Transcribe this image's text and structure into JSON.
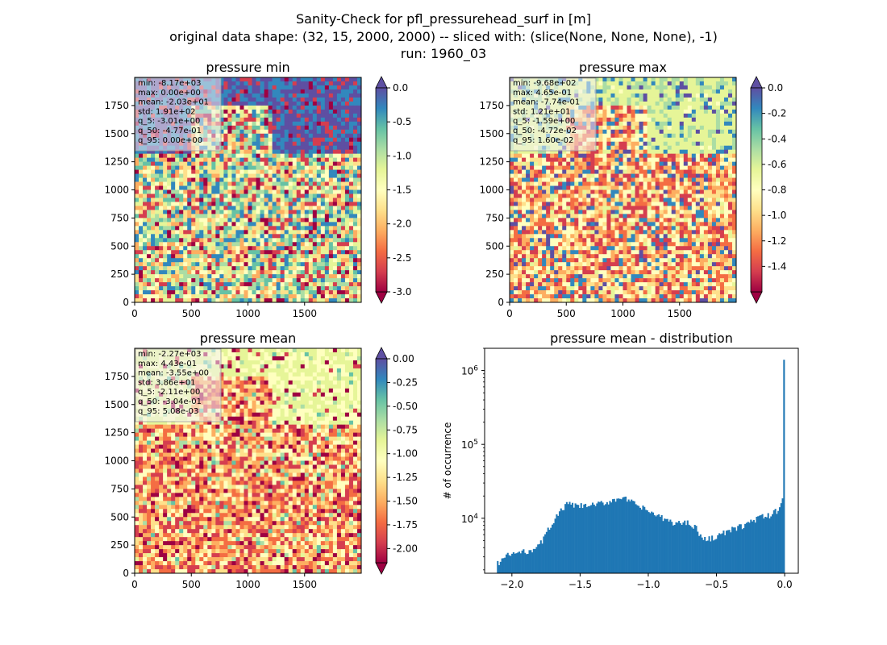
{
  "figure": {
    "title_lines": [
      "Sanity-Check for pfl_pressurehead_surf in [m]",
      "original data shape: (32, 15, 2000, 2000) -- sliced with: (slice(None, None, None), -1)",
      "run: 1960_03"
    ]
  },
  "colormap": [
    "#9e0142",
    "#d53e4f",
    "#f46d43",
    "#fdae61",
    "#fee08b",
    "#ffffbf",
    "#e6f598",
    "#abdda4",
    "#66c2a5",
    "#3288bd",
    "#5e4fa2"
  ],
  "chart_data": [
    {
      "type": "heatmap",
      "title": "pressure min",
      "xlim": [
        0,
        2000
      ],
      "ylim": [
        0,
        2000
      ],
      "xticks": [
        0,
        500,
        1000,
        1500
      ],
      "yticks": [
        0,
        250,
        500,
        750,
        1000,
        1250,
        1500,
        1750
      ],
      "colorbar": {
        "vmin": -3.0,
        "vmax": 0.0,
        "ticks": [
          "0.0",
          "-0.5",
          "-1.0",
          "-1.5",
          "-2.0",
          "-2.5",
          "-3.0"
        ],
        "extend": "both"
      },
      "stats": [
        "min: -8.17e+03",
        "max: 0.00e+00",
        "mean: -2.03e+01",
        "std: 1.91e+02",
        "q_5: -3.01e+00",
        "q_50: -4.77e-01",
        "q_95: 0.00e+00"
      ]
    },
    {
      "type": "heatmap",
      "title": "pressure max",
      "xlim": [
        0,
        2000
      ],
      "ylim": [
        0,
        2000
      ],
      "xticks": [
        0,
        500,
        1000,
        1500
      ],
      "yticks": [
        0,
        250,
        500,
        750,
        1000,
        1250,
        1500,
        1750
      ],
      "colorbar": {
        "vmin": -1.6,
        "vmax": 0.0,
        "ticks": [
          "0.0",
          "-0.2",
          "-0.4",
          "-0.6",
          "-0.8",
          "-1.0",
          "-1.2",
          "-1.4"
        ],
        "extend": "both"
      },
      "stats": [
        "min: -9.68e+02",
        "max: 4.65e-01",
        "mean: -7.74e-01",
        "std: 1.21e+01",
        "q_5: -1.59e+00",
        "q_50: -4.72e-02",
        "q_95: 1.60e-02"
      ]
    },
    {
      "type": "heatmap",
      "title": "pressure mean",
      "xlim": [
        0,
        2000
      ],
      "ylim": [
        0,
        2000
      ],
      "xticks": [
        0,
        500,
        1000,
        1500
      ],
      "yticks": [
        0,
        250,
        500,
        750,
        1000,
        1250,
        1500,
        1750
      ],
      "colorbar": {
        "vmin": -2.15,
        "vmax": 0.0,
        "ticks": [
          "0.00",
          "-0.25",
          "-0.50",
          "-0.75",
          "-1.00",
          "-1.25",
          "-1.50",
          "-1.75",
          "-2.00"
        ],
        "extend": "both"
      },
      "stats": [
        "min: -2.27e+03",
        "max: 4.43e-01",
        "mean: -3.55e+00",
        "std: 3.86e+01",
        "q_5: -2.11e+00",
        "q_50: -3.04e-01",
        "q_95: 5.08e-03"
      ]
    },
    {
      "type": "bar",
      "title": "pressure mean - distribution",
      "ylabel": "# of occurrence",
      "yscale": "log",
      "xlim": [
        -2.2,
        0.1
      ],
      "ylim": [
        1800,
        2000000
      ],
      "xticks": [
        "−2.0",
        "−1.5",
        "−1.0",
        "−0.5",
        "0.0"
      ],
      "ytick_labels": [
        {
          "base": "10",
          "exp": "4"
        },
        {
          "base": "10",
          "exp": "5"
        },
        {
          "base": "10",
          "exp": "6"
        }
      ],
      "color": "#1f77b4",
      "bin_range": [
        -2.11,
        0.0
      ],
      "profile": [
        [
          -2.11,
          2400
        ],
        [
          -2.05,
          3000
        ],
        [
          -2.0,
          3300
        ],
        [
          -1.9,
          3500
        ],
        [
          -1.8,
          4200
        ],
        [
          -1.7,
          9000
        ],
        [
          -1.6,
          15500
        ],
        [
          -1.5,
          14500
        ],
        [
          -1.4,
          15000
        ],
        [
          -1.3,
          16500
        ],
        [
          -1.2,
          19500
        ],
        [
          -1.1,
          15500
        ],
        [
          -1.0,
          12500
        ],
        [
          -0.9,
          10000
        ],
        [
          -0.8,
          8500
        ],
        [
          -0.7,
          8800
        ],
        [
          -0.65,
          7500
        ],
        [
          -0.6,
          5000
        ],
        [
          -0.5,
          5700
        ],
        [
          -0.4,
          6800
        ],
        [
          -0.3,
          8000
        ],
        [
          -0.2,
          10000
        ],
        [
          -0.1,
          11000
        ],
        [
          -0.05,
          13000
        ],
        [
          -0.02,
          17000
        ],
        [
          0.0,
          26000
        ]
      ],
      "peak_value": 1400000
    }
  ]
}
